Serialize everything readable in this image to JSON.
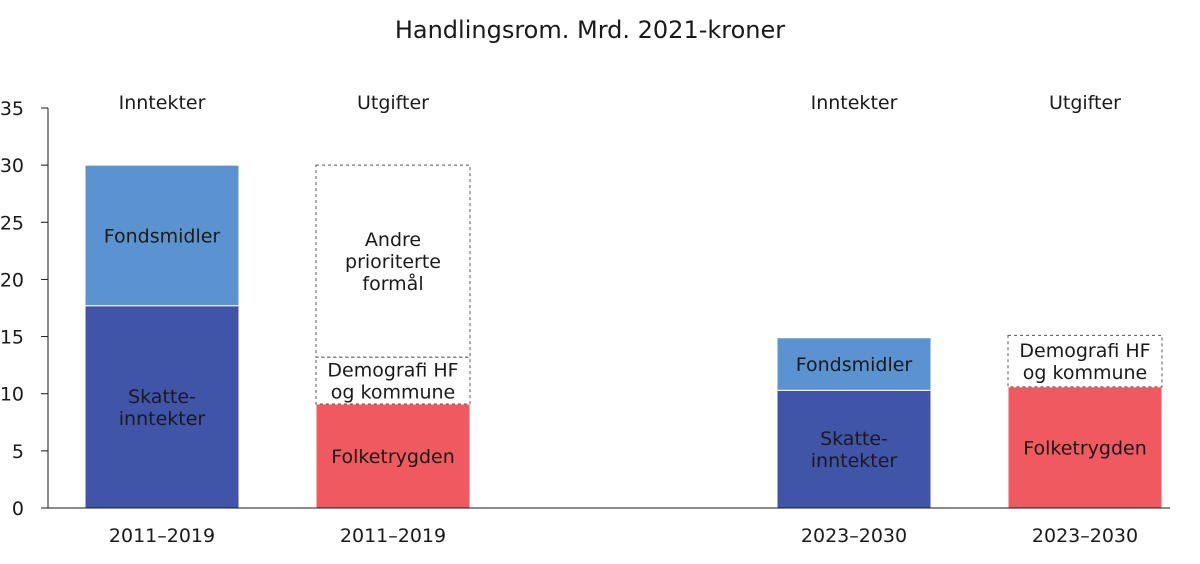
{
  "chart_data": {
    "type": "bar",
    "stacked": true,
    "title": "Handlingsrom. Mrd. 2021-kroner",
    "xlabel": "",
    "ylabel": "",
    "ylim": [
      0,
      35
    ],
    "yticks": [
      0,
      5,
      10,
      15,
      20,
      25,
      30,
      35
    ],
    "grid": false,
    "legend": "none",
    "bars": [
      {
        "header": "Inntekter",
        "category": "2011–2019",
        "segments": [
          {
            "name": "Skatte-inntekter",
            "label_lines": [
              "Skatte-",
              "inntekter"
            ],
            "value": 17.7,
            "color": "#4054A8",
            "style": "solid",
            "text_color": "#1a1a1a"
          },
          {
            "name": "Fondsmidler",
            "label_lines": [
              "Fondsmidler"
            ],
            "value": 12.3,
            "color": "#5B93D0",
            "style": "solid",
            "text_color": "#1a1a1a"
          }
        ]
      },
      {
        "header": "Utgifter",
        "category": "2011–2019",
        "segments": [
          {
            "name": "Folketrygden",
            "label_lines": [
              "Folketrygden"
            ],
            "value": 9.1,
            "color": "#F05A5F",
            "style": "solid",
            "text_color": "#1a1a1a"
          },
          {
            "name": "Demografi HF og kommune",
            "label_lines": [
              "Demografi HF",
              "og kommune"
            ],
            "value": 4.1,
            "color": "#ffffff",
            "style": "dashed",
            "text_color": "#1a1a1a"
          },
          {
            "name": "Andre prioriterte formål",
            "label_lines": [
              "Andre",
              "prioriterte",
              "formål"
            ],
            "value": 16.8,
            "color": "#ffffff",
            "style": "dashed",
            "text_color": "#1a1a1a"
          }
        ]
      },
      {
        "header": "Inntekter",
        "category": "2023–2030",
        "segments": [
          {
            "name": "Skatte-inntekter",
            "label_lines": [
              "Skatte-",
              "inntekter"
            ],
            "value": 10.3,
            "color": "#4054A8",
            "style": "solid",
            "text_color": "#1a1a1a"
          },
          {
            "name": "Fondsmidler",
            "label_lines": [
              "Fondsmidler"
            ],
            "value": 4.6,
            "color": "#5B93D0",
            "style": "solid",
            "text_color": "#1a1a1a"
          }
        ]
      },
      {
        "header": "Utgifter",
        "category": "2023–2030",
        "segments": [
          {
            "name": "Folketrygden",
            "label_lines": [
              "Folketrygden"
            ],
            "value": 10.6,
            "color": "#F05A5F",
            "style": "solid",
            "text_color": "#1a1a1a"
          },
          {
            "name": "Demografi HF og kommune",
            "label_lines": [
              "Demografi HF",
              "og kommune"
            ],
            "value": 4.5,
            "color": "#ffffff",
            "style": "dashed",
            "text_color": "#1a1a1a"
          }
        ]
      }
    ]
  }
}
